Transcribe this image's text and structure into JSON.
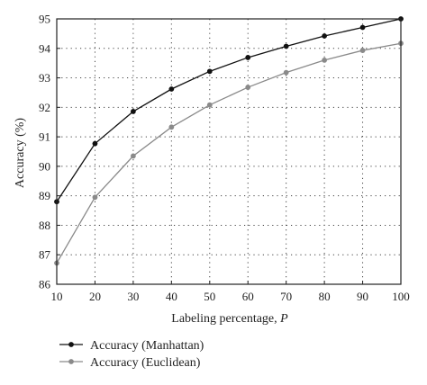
{
  "chart_data": {
    "type": "line",
    "xlabel_main": "Labeling percentage, ",
    "xlabel_var": "P",
    "ylabel": "Accuracy (%)",
    "x": [
      10,
      20,
      30,
      40,
      50,
      60,
      70,
      80,
      90,
      100
    ],
    "xlim": [
      10,
      100
    ],
    "ylim": [
      86,
      95
    ],
    "xticks": [
      "10",
      "20",
      "30",
      "40",
      "50",
      "60",
      "70",
      "80",
      "90",
      "100"
    ],
    "yticks": [
      "86",
      "87",
      "88",
      "89",
      "90",
      "91",
      "92",
      "93",
      "94",
      "95"
    ],
    "grid": true,
    "legend_position": "bottom",
    "series": [
      {
        "name": "Accuracy (Manhattan)",
        "color": "#111111",
        "values": [
          88.8,
          90.77,
          91.86,
          92.62,
          93.22,
          93.69,
          94.07,
          94.42,
          94.71,
          95.0
        ]
      },
      {
        "name": "Accuracy (Euclidean)",
        "color": "#8a8a8a",
        "values": [
          86.72,
          88.95,
          90.35,
          91.33,
          92.08,
          92.68,
          93.18,
          93.6,
          93.93,
          94.17
        ]
      }
    ]
  }
}
